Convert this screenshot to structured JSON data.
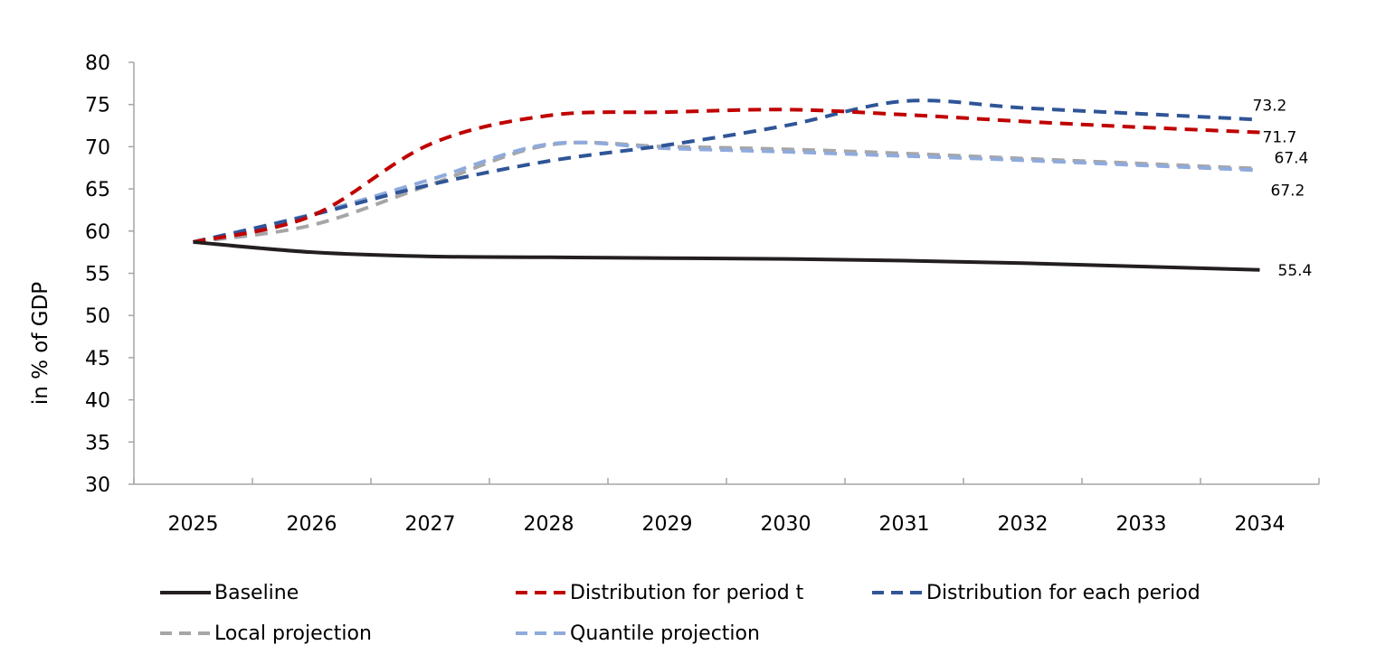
{
  "chart_data": {
    "type": "line",
    "ylabel": "in % of GDP",
    "xlabel": "",
    "ylim": [
      30,
      80
    ],
    "yticks": [
      30,
      35,
      40,
      45,
      50,
      55,
      60,
      65,
      70,
      75,
      80
    ],
    "categories": [
      "2025",
      "2026",
      "2027",
      "2028",
      "2029",
      "2030",
      "2031",
      "2032",
      "2033",
      "2034"
    ],
    "grid": false,
    "legend_position": "bottom",
    "series": [
      {
        "name": "Baseline",
        "style": "solid",
        "color": "#231f20",
        "values": [
          58.7,
          57.5,
          57.0,
          56.9,
          56.8,
          56.7,
          56.5,
          56.2,
          55.8,
          55.4
        ],
        "end_label": "55.4"
      },
      {
        "name": "Distribution for period t",
        "style": "dashed",
        "color": "#c00000",
        "values": [
          58.7,
          61.8,
          70.3,
          73.7,
          74.1,
          74.4,
          73.8,
          73.0,
          72.3,
          71.7
        ],
        "end_label": "71.7"
      },
      {
        "name": "Distribution for each period",
        "style": "dashed",
        "color": "#2f5597",
        "values": [
          58.7,
          61.9,
          65.5,
          68.3,
          70.2,
          72.5,
          75.4,
          74.6,
          73.9,
          73.2
        ],
        "end_label": "73.2"
      },
      {
        "name": "Local projection",
        "style": "dashed",
        "color": "#a6a6a6",
        "values": [
          58.7,
          60.7,
          65.5,
          70.2,
          70.0,
          69.7,
          69.2,
          68.6,
          68.0,
          67.4
        ],
        "end_label": "67.4"
      },
      {
        "name": "Quantile projection",
        "style": "dashed",
        "color": "#8faadc",
        "values": [
          58.7,
          62.0,
          66.1,
          70.3,
          69.8,
          69.4,
          68.9,
          68.4,
          67.8,
          67.2
        ],
        "end_label": "67.2"
      }
    ]
  }
}
